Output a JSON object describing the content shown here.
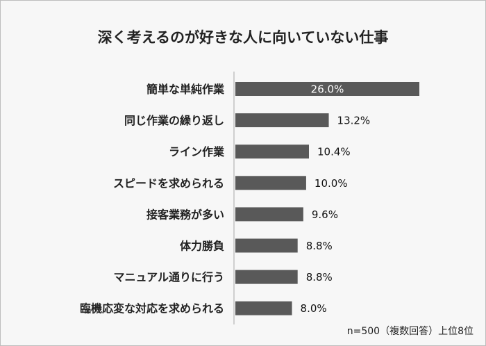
{
  "chart_data": {
    "type": "bar",
    "orientation": "horizontal",
    "title": "深く考えるのが好きな人に向いていない仕事",
    "categories": [
      "簡単な単純作業",
      "同じ作業の繰り返し",
      "ライン作業",
      "スピードを求められる",
      "接客業務が多い",
      "体力勝負",
      "マニュアル通りに行う",
      "臨機応変な対応を求められる"
    ],
    "values": [
      26.0,
      13.2,
      10.4,
      10.0,
      9.6,
      8.8,
      8.8,
      8.0
    ],
    "labels": [
      "26.0%",
      "13.2%",
      "10.4%",
      "10.0%",
      "9.6%",
      "8.8%",
      "8.8%",
      "8.0%"
    ],
    "unit": "%",
    "xlim": [
      0,
      26
    ],
    "grid": false,
    "bar_color": "#595959",
    "note": "n=500（複数回答）上位8位"
  }
}
